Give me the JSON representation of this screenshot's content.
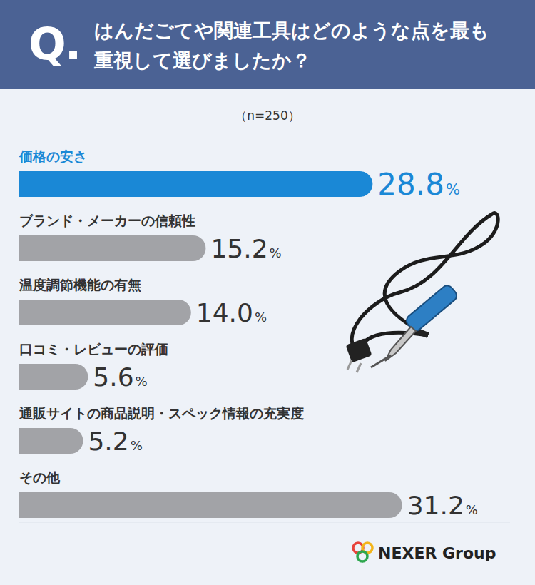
{
  "badge": "Q.",
  "logo": "NEXER Group",
  "chart_data": {
    "type": "bar",
    "orientation": "horizontal",
    "title": "はんだごてや関連工具はどのような点を最も重視して選びましたか？",
    "subtitle": "（n=250）",
    "categories": [
      "価格の安さ",
      "ブランド・メーカーの信頼性",
      "温度調節機能の有無",
      "口コミ・レビューの評価",
      "通販サイトの商品説明・スペック情報の充実度",
      "その他"
    ],
    "values": [
      28.8,
      15.2,
      14.0,
      5.6,
      5.2,
      31.2
    ],
    "value_labels": [
      "28.8%",
      "15.2%",
      "14.0%",
      "5.6%",
      "5.2%",
      "31.2%"
    ],
    "colors": [
      "#1a88d6",
      "#a2a3a7",
      "#a2a3a7",
      "#a2a3a7",
      "#a2a3a7",
      "#a2a3a7"
    ],
    "xlim": [
      0,
      40
    ],
    "data_labels": true,
    "grid": false
  }
}
